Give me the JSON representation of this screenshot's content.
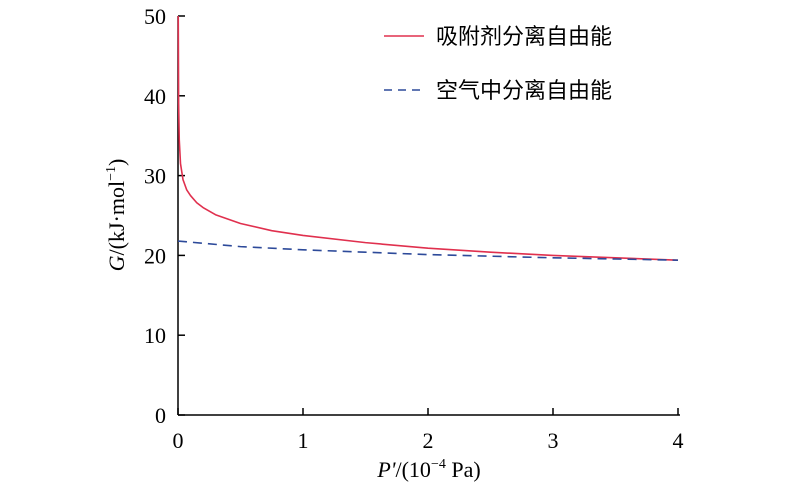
{
  "chart_data": {
    "type": "line",
    "xlabel": {
      "var": "P'",
      "rest": "/(10",
      "sup": "−4",
      "unit": " Pa)"
    },
    "ylabel": {
      "var": "G",
      "rest": "/(kJ·mol",
      "sup": "−1",
      "close": ")"
    },
    "xlim": [
      0,
      4
    ],
    "ylim": [
      0,
      50
    ],
    "xticks": [
      0,
      1,
      2,
      3,
      4
    ],
    "yticks": [
      0,
      10,
      20,
      30,
      40,
      50
    ],
    "legend_position": "top-right",
    "series": [
      {
        "name": "吸附剂分离自由能",
        "color": "#e0304e",
        "style": "solid",
        "x": [
          0.002,
          0.005,
          0.01,
          0.02,
          0.04,
          0.07,
          0.1,
          0.15,
          0.2,
          0.3,
          0.5,
          0.75,
          1.0,
          1.5,
          2.0,
          2.5,
          3.0,
          3.5,
          4.0
        ],
        "y": [
          50.0,
          39.0,
          34.5,
          31.5,
          29.5,
          28.2,
          27.5,
          26.6,
          26.0,
          25.1,
          24.0,
          23.1,
          22.5,
          21.6,
          20.9,
          20.4,
          20.0,
          19.7,
          19.4
        ]
      },
      {
        "name": "空气中分离自由能",
        "color": "#2d4a9a",
        "style": "dashed",
        "x": [
          0,
          0.5,
          1.0,
          1.5,
          2.0,
          2.5,
          3.0,
          3.5,
          4.0
        ],
        "y": [
          21.8,
          21.1,
          20.7,
          20.4,
          20.1,
          19.9,
          19.7,
          19.55,
          19.4
        ]
      }
    ]
  }
}
